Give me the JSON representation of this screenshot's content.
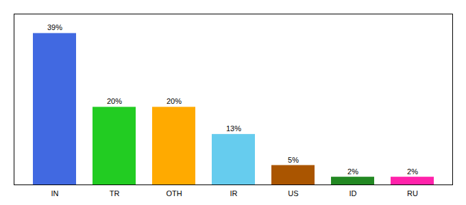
{
  "chart_data": {
    "type": "bar",
    "categories": [
      "IN",
      "TR",
      "OTH",
      "IR",
      "US",
      "ID",
      "RU"
    ],
    "values": [
      39,
      20,
      20,
      13,
      5,
      2,
      2
    ],
    "value_labels": [
      "39%",
      "20%",
      "20%",
      "13%",
      "5%",
      "2%",
      "2%"
    ],
    "colors": [
      "#4169e1",
      "#22cc22",
      "#ffaa00",
      "#66ccee",
      "#aa5500",
      "#228822",
      "#ff22aa"
    ],
    "ylim": [
      0,
      44
    ],
    "grid": false,
    "data_labels": true,
    "tick_labels": "x"
  }
}
